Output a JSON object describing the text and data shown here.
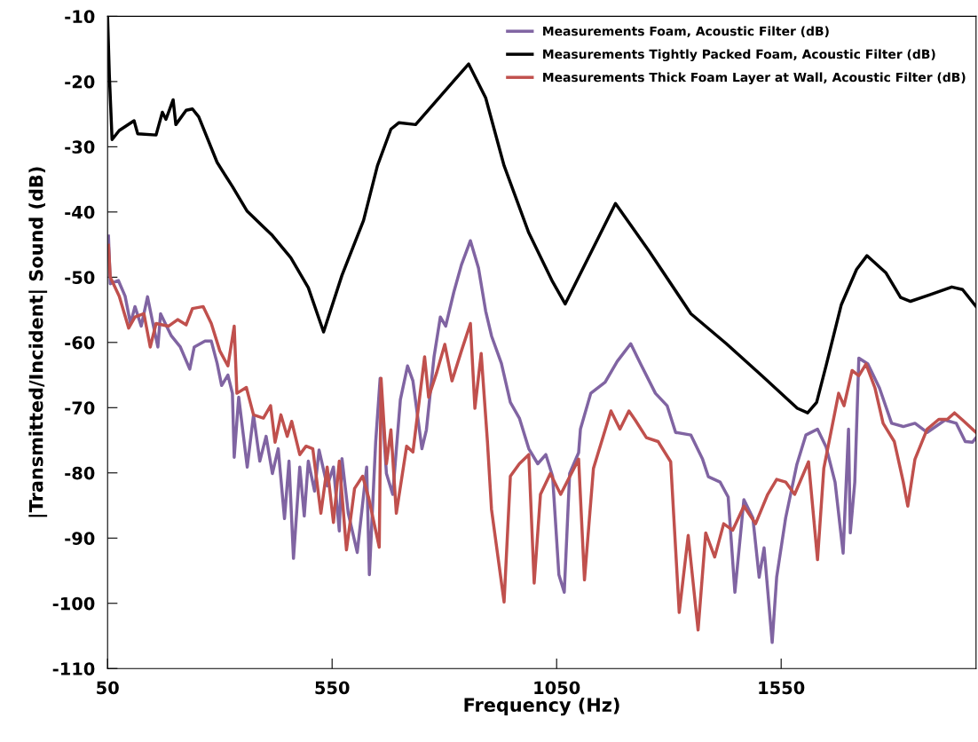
{
  "chart_data": {
    "type": "line",
    "xlabel": "Frequency (Hz)",
    "ylabel": "|Transmitted/Incident| Sound (dB)",
    "xlim": [
      50,
      1984
    ],
    "xticks": [
      50,
      550,
      1050,
      1550
    ],
    "ylim": [
      -110,
      -10
    ],
    "yticks": [
      -110,
      -100,
      -90,
      -80,
      -70,
      -60,
      -50,
      -40,
      -30,
      -20,
      -10
    ],
    "grid": false,
    "legend": "top right",
    "marker": "none",
    "line_style": "solid",
    "series": [
      {
        "name": "Measurements Foam, Acoustic Filter (dB)",
        "color": "#8064a2",
        "x": [
          52,
          56,
          74,
          89,
          101,
          111,
          125,
          139,
          151,
          162,
          168,
          192,
          212,
          233,
          243,
          267,
          281,
          294,
          304,
          318,
          328,
          332,
          342,
          361,
          375,
          389,
          403,
          417,
          430,
          444,
          454,
          464,
          478,
          488,
          497,
          511,
          521,
          539,
          553,
          566,
          572,
          586,
          606,
          627,
          633,
          647,
          657,
          671,
          685,
          702,
          718,
          730,
          750,
          760,
          777,
          791,
          803,
          821,
          838,
          858,
          876,
          892,
          905,
          927,
          947,
          967,
          988,
          1008,
          1026,
          1041,
          1055,
          1067,
          1079,
          1099,
          1103,
          1126,
          1158,
          1185,
          1215,
          1237,
          1270,
          1296,
          1315,
          1349,
          1375,
          1388,
          1414,
          1432,
          1447,
          1467,
          1487,
          1501,
          1512,
          1530,
          1540,
          1560,
          1585,
          1605,
          1631,
          1650,
          1670,
          1688,
          1700,
          1704,
          1714,
          1723,
          1743,
          1769,
          1796,
          1822,
          1848,
          1875,
          1915,
          1940,
          1960,
          1976,
          1984
        ],
        "values": [
          -43.7,
          -51,
          -50.5,
          -52.9,
          -57.1,
          -54.5,
          -57.5,
          -53,
          -57.1,
          -60.7,
          -55.6,
          -59,
          -60.7,
          -64.1,
          -60.7,
          -59.8,
          -59.8,
          -63.2,
          -66.6,
          -65,
          -67.8,
          -77.6,
          -68.4,
          -79.1,
          -71.1,
          -78.2,
          -74.4,
          -80.1,
          -76.3,
          -87,
          -78.2,
          -93.1,
          -79.1,
          -86.6,
          -78.2,
          -82.8,
          -76.5,
          -82,
          -79.1,
          -88.9,
          -77.8,
          -86.2,
          -92.2,
          -79.1,
          -95.6,
          -75.3,
          -65.5,
          -80.1,
          -83.3,
          -68.8,
          -63.6,
          -65.9,
          -76.3,
          -73.4,
          -62.2,
          -56.1,
          -57.5,
          -52.3,
          -48.1,
          -44.4,
          -48.6,
          -55.2,
          -59,
          -63.2,
          -69.2,
          -71.6,
          -76.3,
          -78.6,
          -77.2,
          -80.5,
          -95.6,
          -98.3,
          -80.1,
          -76.9,
          -73.3,
          -67.8,
          -66.1,
          -62.9,
          -60.2,
          -63.3,
          -67.8,
          -69.7,
          -73.8,
          -74.2,
          -77.9,
          -80.6,
          -81.4,
          -83.7,
          -98.3,
          -84.1,
          -86.9,
          -96,
          -91.5,
          -106,
          -96,
          -86.9,
          -78.7,
          -74.2,
          -73.3,
          -76,
          -81.4,
          -92.3,
          -73.3,
          -89.2,
          -81.4,
          -62.4,
          -63.3,
          -67,
          -72.4,
          -72.9,
          -72.4,
          -73.8,
          -71.9,
          -72.4,
          -75.2,
          -75.3,
          -74.6
        ]
      },
      {
        "name": "Measurements Tightly Packed Foam, Acoustic Filter (dB)",
        "color": "#000000",
        "x": [
          50,
          54,
          60,
          76,
          109,
          117,
          158,
          172,
          180,
          196,
          202,
          225,
          239,
          253,
          294,
          328,
          361,
          417,
          458,
          497,
          531,
          572,
          620,
          651,
          681,
          699,
          736,
          854,
          892,
          933,
          988,
          1041,
          1069,
          1181,
          1256,
          1349,
          1428,
          1507,
          1586,
          1609,
          1629,
          1651,
          1684,
          1718,
          1741,
          1783,
          1816,
          1838,
          1881,
          1930,
          1954,
          1984
        ],
        "values": [
          -10,
          -19.1,
          -28.9,
          -27.5,
          -26,
          -28,
          -28.2,
          -24.7,
          -25.8,
          -22.8,
          -26.6,
          -24.4,
          -24.2,
          -25.4,
          -32.4,
          -36.1,
          -39.9,
          -43.6,
          -47,
          -51.6,
          -58.4,
          -49.7,
          -41.3,
          -32.9,
          -27.3,
          -26.3,
          -26.6,
          -17.3,
          -22.5,
          -32.9,
          -43.2,
          -50.7,
          -54.1,
          -38.7,
          -46,
          -55.6,
          -60.2,
          -65.1,
          -70.1,
          -70.8,
          -69.2,
          -63.3,
          -54.2,
          -48.8,
          -46.7,
          -49.3,
          -53.1,
          -53.7,
          -52.7,
          -51.5,
          -51.9,
          -54.5
        ]
      },
      {
        "name": "Measurements Thick Foam Layer at Wall, Acoustic Filter (dB)",
        "color": "#c0504d",
        "x": [
          52,
          56,
          76,
          97,
          111,
          131,
          145,
          158,
          186,
          206,
          225,
          239,
          263,
          281,
          300,
          318,
          332,
          338,
          359,
          375,
          397,
          413,
          423,
          436,
          450,
          460,
          478,
          492,
          507,
          525,
          539,
          553,
          566,
          582,
          600,
          618,
          631,
          655,
          659,
          671,
          681,
          693,
          716,
          730,
          756,
          765,
          783,
          801,
          817,
          838,
          858,
          868,
          882,
          896,
          905,
          933,
          947,
          967,
          988,
          1000,
          1014,
          1036,
          1059,
          1099,
          1112,
          1132,
          1171,
          1191,
          1211,
          1225,
          1250,
          1276,
          1304,
          1323,
          1343,
          1365,
          1382,
          1402,
          1422,
          1442,
          1467,
          1493,
          1520,
          1540,
          1560,
          1580,
          1611,
          1631,
          1645,
          1678,
          1690,
          1708,
          1723,
          1739,
          1759,
          1777,
          1802,
          1822,
          1832,
          1848,
          1875,
          1901,
          1920,
          1936,
          1954,
          1984
        ],
        "values": [
          -45.1,
          -50,
          -52.9,
          -57.8,
          -56.1,
          -55.6,
          -60.7,
          -57.1,
          -57.5,
          -56.5,
          -57.3,
          -54.8,
          -54.5,
          -57.1,
          -61.3,
          -63.6,
          -57.5,
          -67.8,
          -66.9,
          -71.1,
          -71.6,
          -69.7,
          -75.3,
          -71.1,
          -74.4,
          -72.1,
          -77.2,
          -75.9,
          -76.3,
          -86.2,
          -79.1,
          -87.6,
          -78.2,
          -91.8,
          -82.4,
          -80.5,
          -83.7,
          -91.4,
          -65.5,
          -78.6,
          -73.4,
          -86.2,
          -75.9,
          -76.8,
          -62.2,
          -68.4,
          -64.6,
          -60.3,
          -65.9,
          -61.3,
          -57.1,
          -70.1,
          -61.7,
          -75.3,
          -85.6,
          -99.8,
          -80.5,
          -78.6,
          -77.2,
          -96.9,
          -83.3,
          -80.1,
          -83.3,
          -77.9,
          -96.4,
          -79.3,
          -70.5,
          -73.3,
          -70.5,
          -71.9,
          -74.6,
          -75.2,
          -78.3,
          -101.4,
          -89.6,
          -104.1,
          -89.2,
          -92.9,
          -87.8,
          -88.8,
          -85.1,
          -87.8,
          -83.3,
          -81,
          -81.4,
          -83.3,
          -78.3,
          -93.3,
          -79.3,
          -67.8,
          -69.7,
          -64.3,
          -65.1,
          -63.3,
          -67,
          -72.4,
          -75.2,
          -81.4,
          -85.1,
          -77.9,
          -73.3,
          -71.8,
          -71.8,
          -70.8,
          -71.9,
          -73.8
        ]
      }
    ]
  }
}
